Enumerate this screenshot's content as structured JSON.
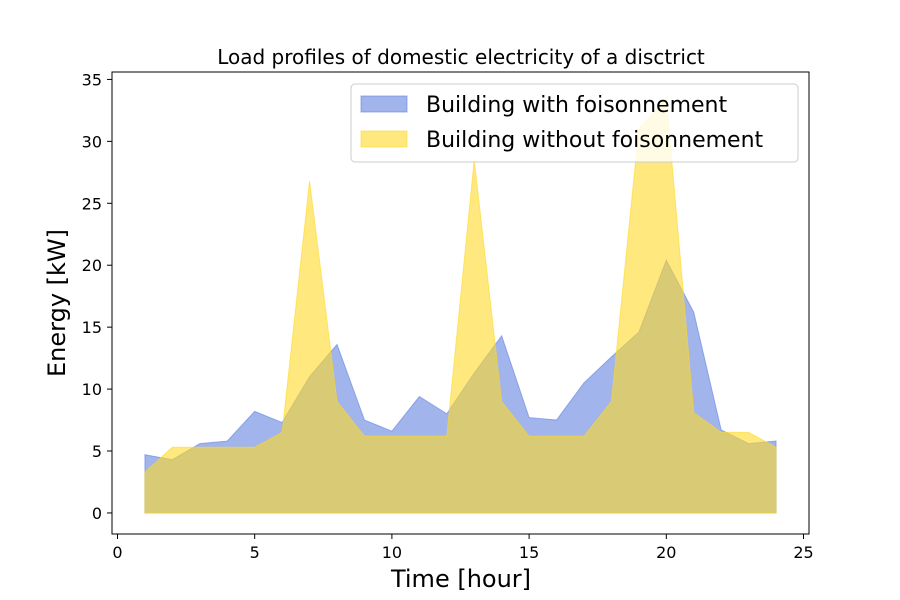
{
  "chart_data": {
    "type": "area",
    "title": "Load profiles of domestic electricity of a disctrict",
    "xlabel": "Time [hour]",
    "ylabel": "Energy [kW]",
    "xlim": [
      -0.2,
      25.2
    ],
    "ylim": [
      -1.7,
      35.6
    ],
    "xticks": [
      0,
      5,
      10,
      15,
      20,
      25
    ],
    "yticks": [
      0,
      5,
      10,
      15,
      20,
      25,
      30,
      35
    ],
    "grid": false,
    "legend_position": "top-right",
    "x": [
      1,
      2,
      3,
      4,
      5,
      6,
      7,
      8,
      9,
      10,
      11,
      12,
      13,
      14,
      15,
      16,
      17,
      18,
      19,
      20,
      21,
      22,
      23,
      24
    ],
    "series": [
      {
        "name": "Building with foisonnement",
        "color": "#6282e0",
        "values": [
          4.7,
          4.3,
          5.6,
          5.8,
          8.2,
          7.3,
          11.0,
          13.6,
          7.5,
          6.6,
          9.4,
          8.0,
          11.3,
          14.3,
          7.7,
          7.5,
          10.5,
          12.6,
          14.6,
          20.4,
          16.2,
          6.7,
          5.6,
          5.8
        ]
      },
      {
        "name": "Building without foisonnement",
        "color": "#ffd826",
        "values": [
          3.3,
          5.3,
          5.3,
          5.3,
          5.3,
          6.5,
          26.8,
          9.0,
          6.2,
          6.2,
          6.2,
          6.2,
          28.5,
          9.0,
          6.2,
          6.2,
          6.2,
          9.0,
          31.0,
          33.5,
          8.1,
          6.5,
          6.5,
          5.3
        ]
      }
    ]
  }
}
